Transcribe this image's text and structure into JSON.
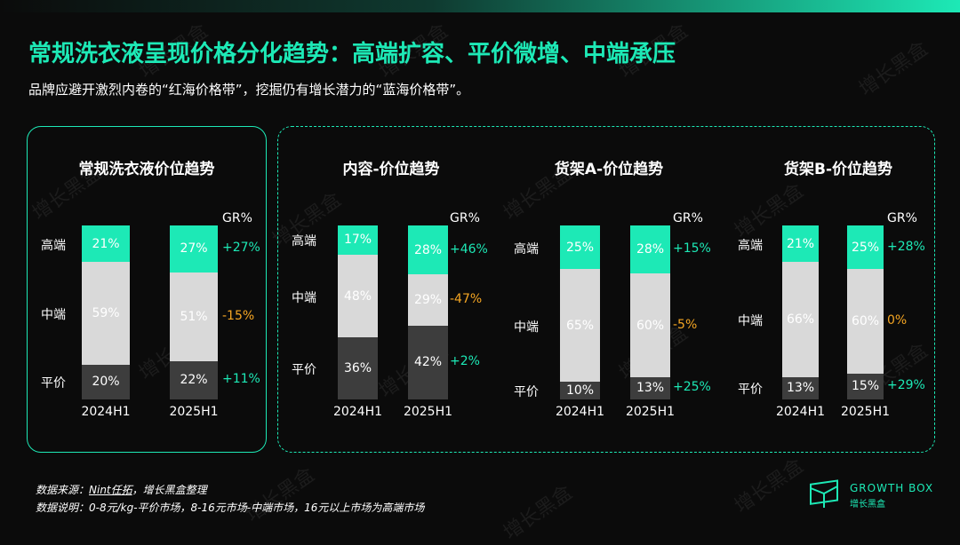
{
  "header": {
    "title": "常规洗衣液呈现价格分化趋势：高端扩容、平价微增、中端承压",
    "subtitle": "品牌应避开激烈内卷的“红海价格带”，挖掘仍有增长潜力的“蓝海价格带”。"
  },
  "colors": {
    "high": "#1de9b6",
    "mid": "#d9d9d9",
    "low": "#3d3d3d",
    "positive": "#1de9b6",
    "negative": "#f5a623"
  },
  "gr_header": "GR%",
  "chart_data": [
    {
      "type": "bar",
      "stacked": true,
      "percent_stacked": true,
      "title": "常规洗衣液价位趋势",
      "categories": [
        "2024H1",
        "2025H1"
      ],
      "series": [
        {
          "name": "平价",
          "values": [
            20,
            22
          ],
          "labels": [
            "20%",
            "22%"
          ],
          "gr": "+11%"
        },
        {
          "name": "中端",
          "values": [
            59,
            51
          ],
          "labels": [
            "59%",
            "51%"
          ],
          "gr": "-15%"
        },
        {
          "name": "高端",
          "values": [
            21,
            27
          ],
          "labels": [
            "21%",
            "27%"
          ],
          "gr": "+27%"
        }
      ]
    },
    {
      "type": "bar",
      "stacked": true,
      "percent_stacked": true,
      "title": "内容-价位趋势",
      "categories": [
        "2024H1",
        "2025H1"
      ],
      "series": [
        {
          "name": "平价",
          "values": [
            36,
            42
          ],
          "labels": [
            "36%",
            "42%"
          ],
          "gr": "+2%"
        },
        {
          "name": "中端",
          "values": [
            48,
            29
          ],
          "labels": [
            "48%",
            "29%"
          ],
          "gr": "-47%"
        },
        {
          "name": "高端",
          "values": [
            17,
            28
          ],
          "labels": [
            "17%",
            "28%"
          ],
          "gr": "+46%"
        }
      ]
    },
    {
      "type": "bar",
      "stacked": true,
      "percent_stacked": true,
      "title": "货架A-价位趋势",
      "categories": [
        "2024H1",
        "2025H1"
      ],
      "series": [
        {
          "name": "平价",
          "values": [
            10,
            13
          ],
          "labels": [
            "10%",
            "13%"
          ],
          "gr": "+25%"
        },
        {
          "name": "中端",
          "values": [
            65,
            60
          ],
          "labels": [
            "65%",
            "60%"
          ],
          "gr": "-5%"
        },
        {
          "name": "高端",
          "values": [
            25,
            28
          ],
          "labels": [
            "25%",
            "28%"
          ],
          "gr": "+15%"
        }
      ]
    },
    {
      "type": "bar",
      "stacked": true,
      "percent_stacked": true,
      "title": "货架B-价位趋势",
      "categories": [
        "2024H1",
        "2025H1"
      ],
      "series": [
        {
          "name": "平价",
          "values": [
            13,
            15
          ],
          "labels": [
            "13%",
            "15%"
          ],
          "gr": "+29%"
        },
        {
          "name": "中端",
          "values": [
            66,
            60
          ],
          "labels": [
            "66%",
            "60%"
          ],
          "gr": "0%"
        },
        {
          "name": "高端",
          "values": [
            21,
            25
          ],
          "labels": [
            "21%",
            "25%"
          ],
          "gr": "+28%"
        }
      ]
    }
  ],
  "footer": {
    "source_prefix": "数据来源：",
    "source_link": "Nint任拓",
    "source_suffix": "，增长黑盒整理",
    "note": "数据说明：0-8元/kg-平价市场，8-16元市场-中端市场，16元以上市场为高端市场"
  },
  "logo": {
    "text": "GROWTH BOX",
    "sub": "增长黑盒"
  },
  "watermark": "增长黑盒"
}
